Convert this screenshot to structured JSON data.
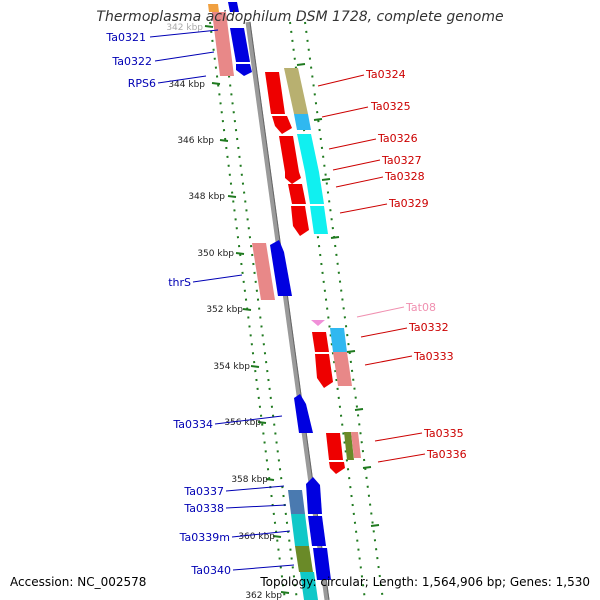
{
  "title": "Thermoplasma acidophilum DSM 1728, complete genome",
  "accession": "Accession: NC_002578",
  "footer": "Topology: circular; Length: 1,564,906 bp; Genes: 1,530",
  "colors": {
    "backbone": "#888888",
    "tick": "#1f7a1f",
    "left_label": "#0000b4",
    "right_label": "#cc0000",
    "trna_label": "#f090b0"
  },
  "ticks": [
    {
      "label": "342 kbp"
    },
    {
      "label": "344 kbp"
    },
    {
      "label": "346 kbp"
    },
    {
      "label": "348 kbp"
    },
    {
      "label": "350 kbp"
    },
    {
      "label": "352 kbp"
    },
    {
      "label": "354 kbp"
    },
    {
      "label": "356 kbp"
    },
    {
      "label": "358 kbp"
    },
    {
      "label": "360 kbp"
    },
    {
      "label": "362 kbp"
    }
  ],
  "left_genes": [
    {
      "name": "Ta0321"
    },
    {
      "name": "Ta0322"
    },
    {
      "name": "RPS6"
    },
    {
      "name": "thrS"
    },
    {
      "name": "Ta0334"
    },
    {
      "name": "Ta0337"
    },
    {
      "name": "Ta0338"
    },
    {
      "name": "Ta0339m"
    },
    {
      "name": "Ta0340"
    }
  ],
  "right_genes": [
    {
      "name": "Ta0324"
    },
    {
      "name": "Ta0325"
    },
    {
      "name": "Ta0326"
    },
    {
      "name": "Ta0327"
    },
    {
      "name": "Ta0328"
    },
    {
      "name": "Ta0329"
    },
    {
      "name": "Tat08"
    },
    {
      "name": "Ta0332"
    },
    {
      "name": "Ta0333"
    },
    {
      "name": "Ta0335"
    },
    {
      "name": "Ta0336"
    }
  ]
}
